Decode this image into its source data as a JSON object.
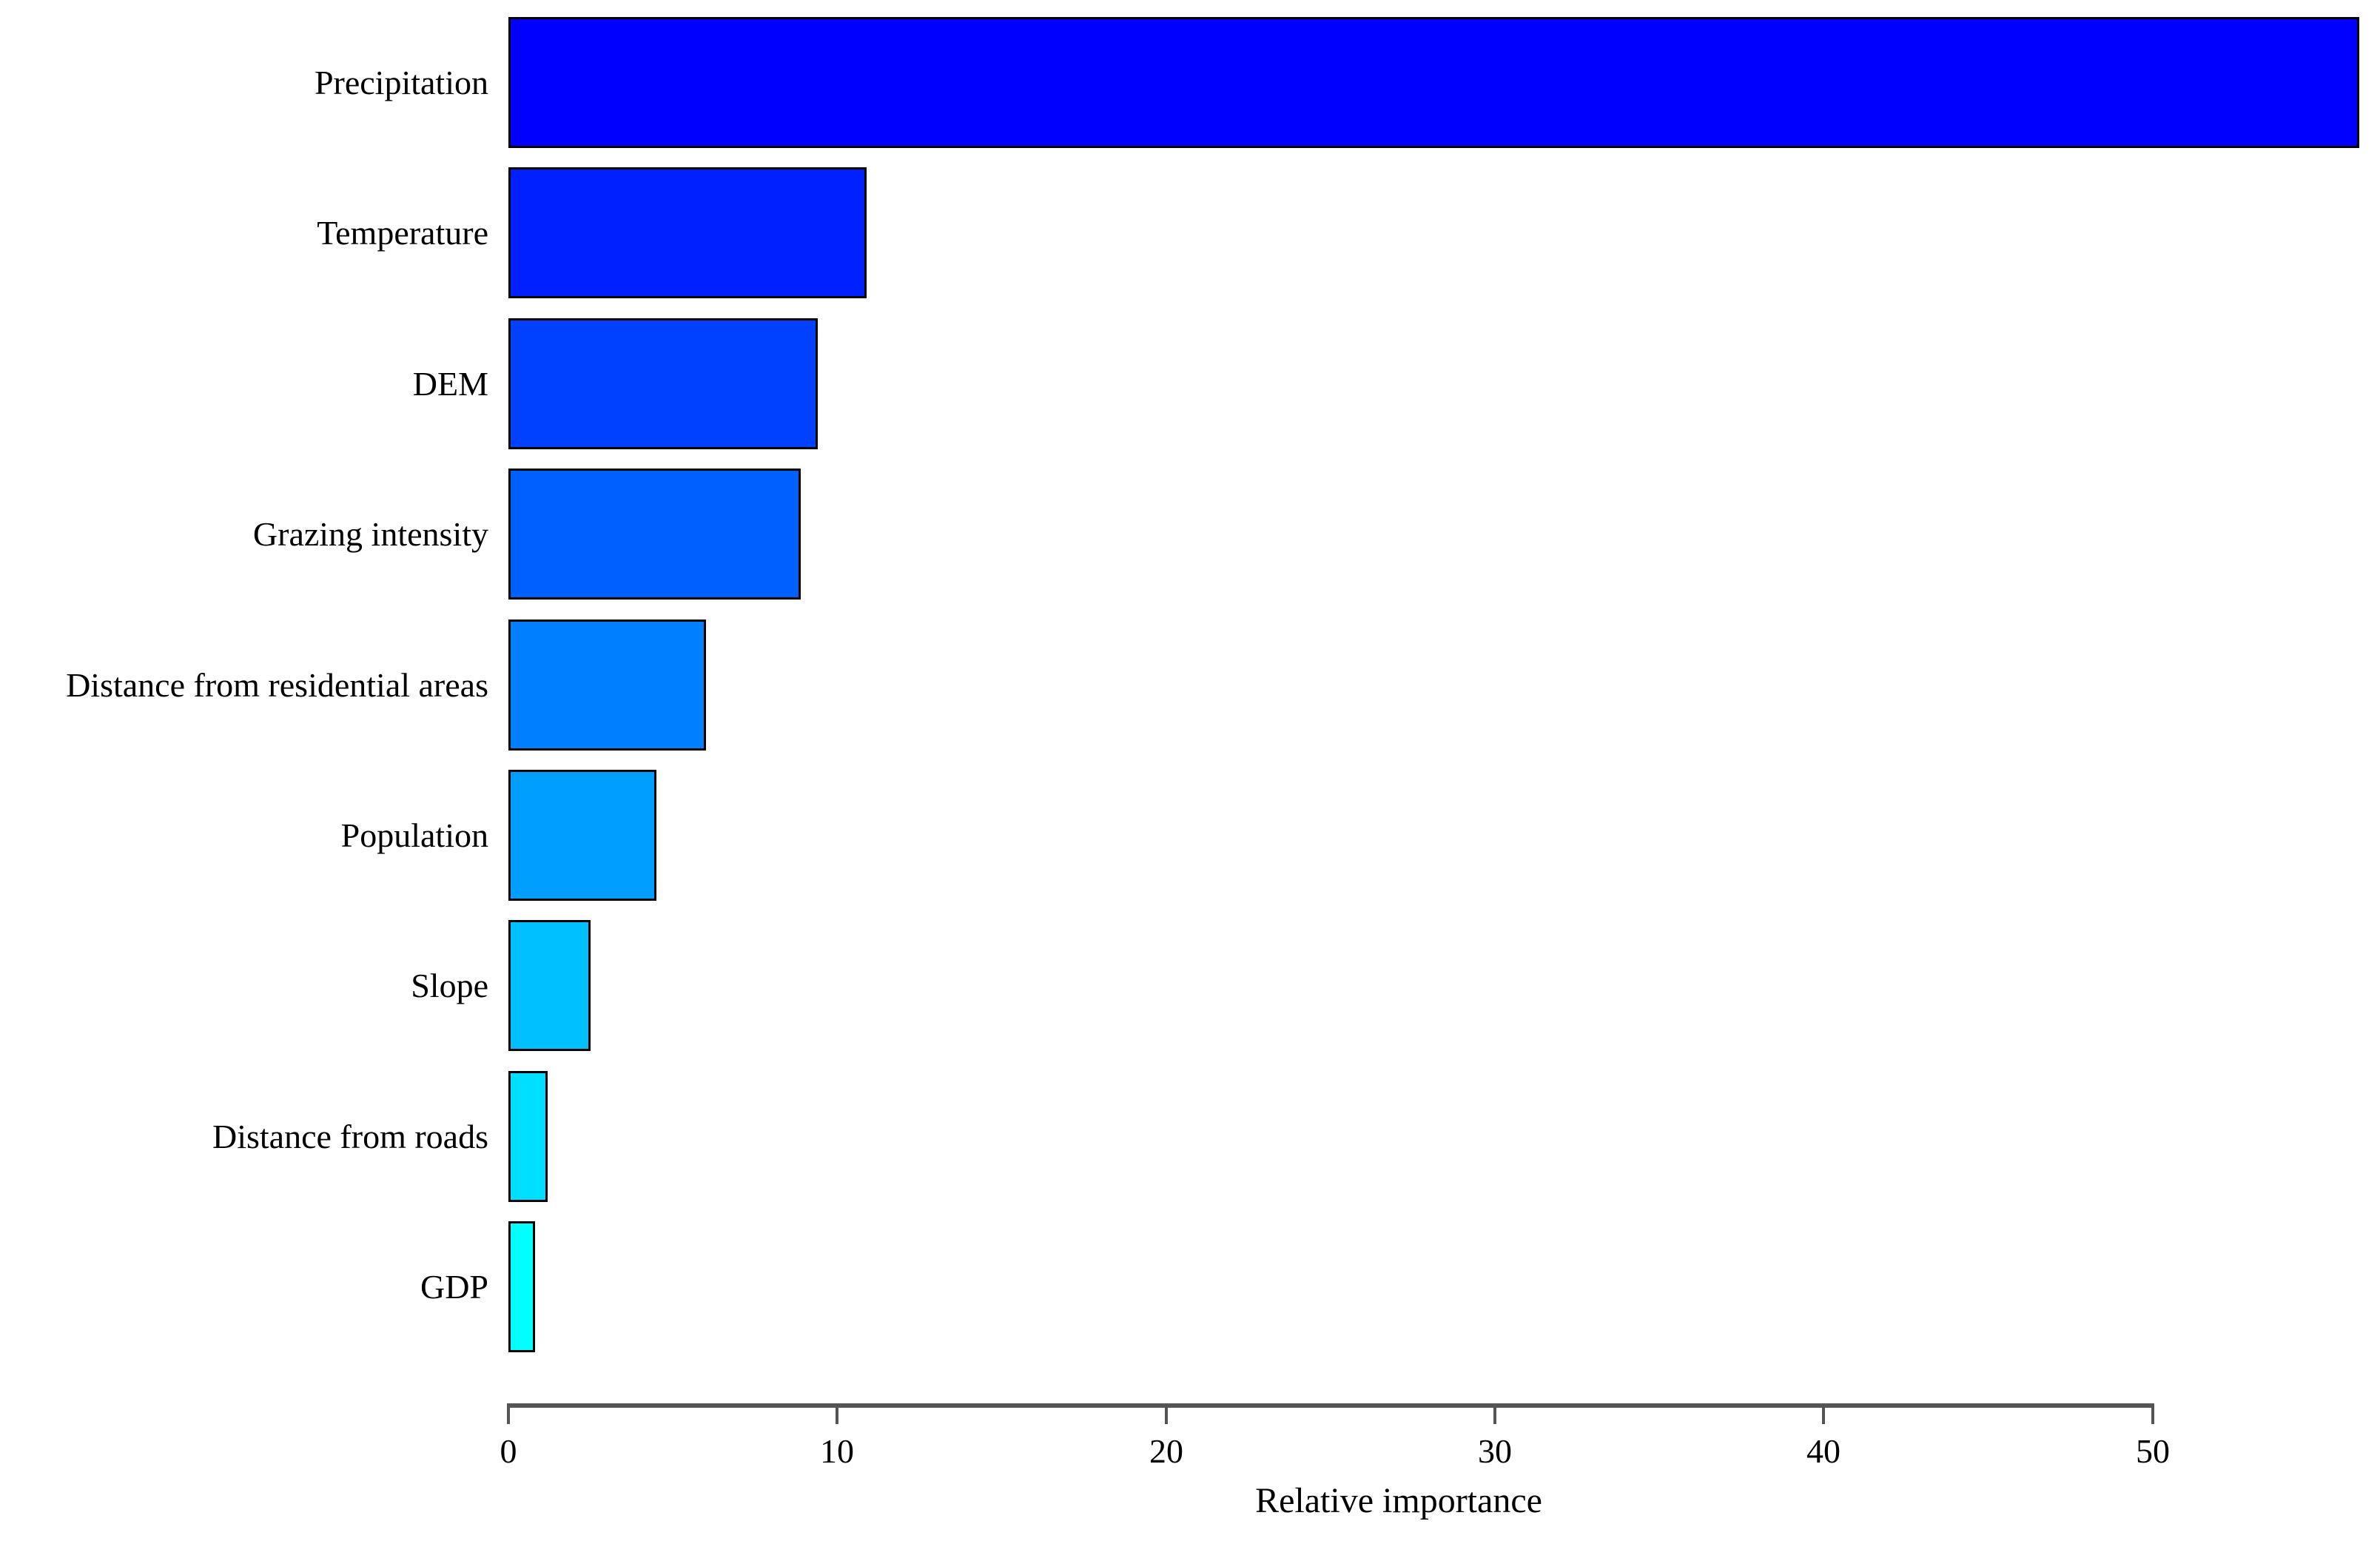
{
  "chart_data": {
    "type": "bar",
    "orientation": "horizontal",
    "categories": [
      "Precipitation",
      "Temperature",
      "DEM",
      "Grazing intensity",
      "Distance from residential areas",
      "Population",
      "Slope",
      "Distance from roads",
      "GDP"
    ],
    "values": [
      56.3,
      10.9,
      9.4,
      8.9,
      6.0,
      4.5,
      2.5,
      1.2,
      0.8
    ],
    "bar_colors": [
      "#0000FF",
      "#0020FF",
      "#0040FF",
      "#0060FF",
      "#0080FF",
      "#009FFF",
      "#00BFFF",
      "#00DFFF",
      "#00FFFF"
    ],
    "bar_border_color": "#000000",
    "xlabel": "Relative importance",
    "x_ticks": [
      0,
      10,
      20,
      30,
      40,
      50
    ],
    "xlim": [
      0,
      56.3
    ],
    "grid": false,
    "legend": false,
    "background_color": "#FFFFFF",
    "axis_color": "#555555",
    "text_color": "#000000"
  }
}
